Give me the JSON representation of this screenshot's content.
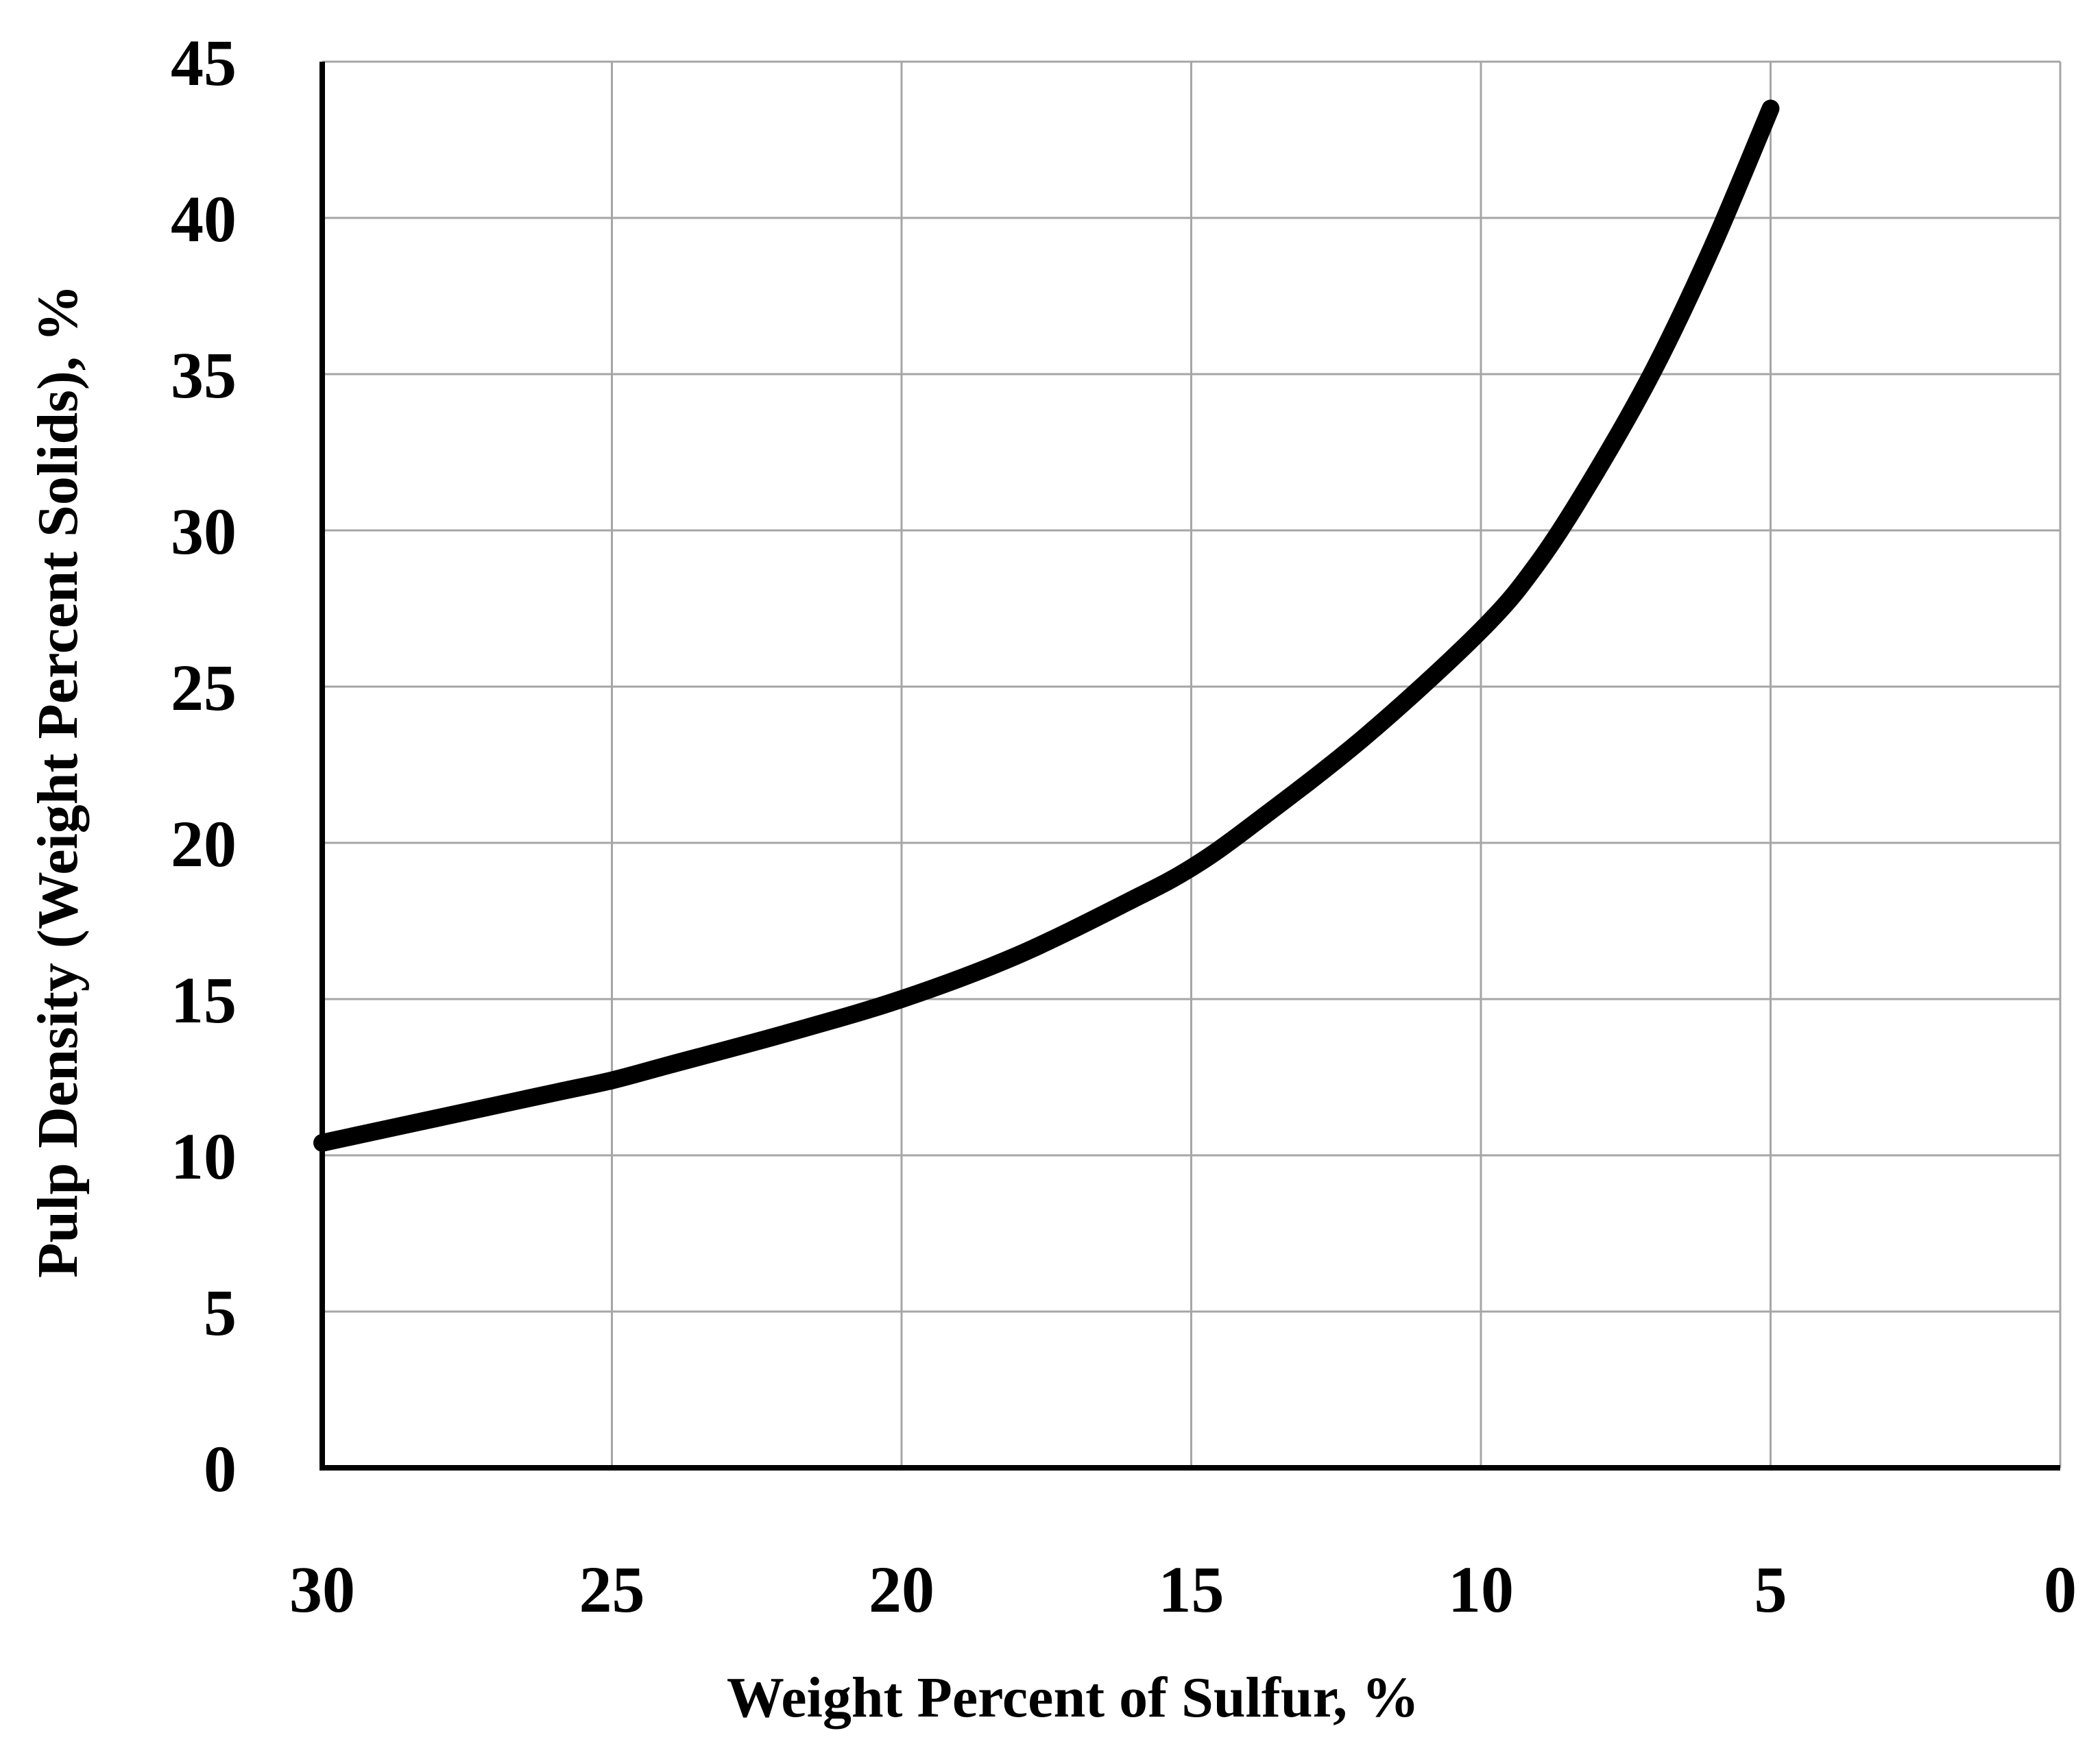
{
  "chart_data": {
    "type": "line",
    "title": "",
    "xlabel": "Weight Percent of Sulfur, %",
    "ylabel": "Pulp Density (Weight Percent Solids), %",
    "xlim": [
      30,
      0
    ],
    "ylim": [
      0,
      45
    ],
    "x_reversed": true,
    "x_ticks": [
      30,
      25,
      20,
      15,
      10,
      5,
      0
    ],
    "y_ticks": [
      0,
      5,
      10,
      15,
      20,
      25,
      30,
      35,
      40,
      45
    ],
    "grid": true,
    "legend": "none",
    "colors": {
      "line": "#000000",
      "grid": "#a6a6a6",
      "axis": "#000000"
    },
    "series": [
      {
        "x": [
          30,
          28,
          26,
          25,
          24,
          22,
          20,
          18,
          16,
          15,
          14,
          12,
          10,
          9,
          8,
          7,
          6,
          5
        ],
        "y": [
          10.4,
          11.2,
          12.0,
          12.4,
          12.9,
          13.9,
          15.0,
          16.4,
          18.2,
          19.2,
          20.5,
          23.4,
          26.8,
          29.0,
          31.9,
          35.2,
          39.1,
          43.5
        ]
      }
    ]
  }
}
